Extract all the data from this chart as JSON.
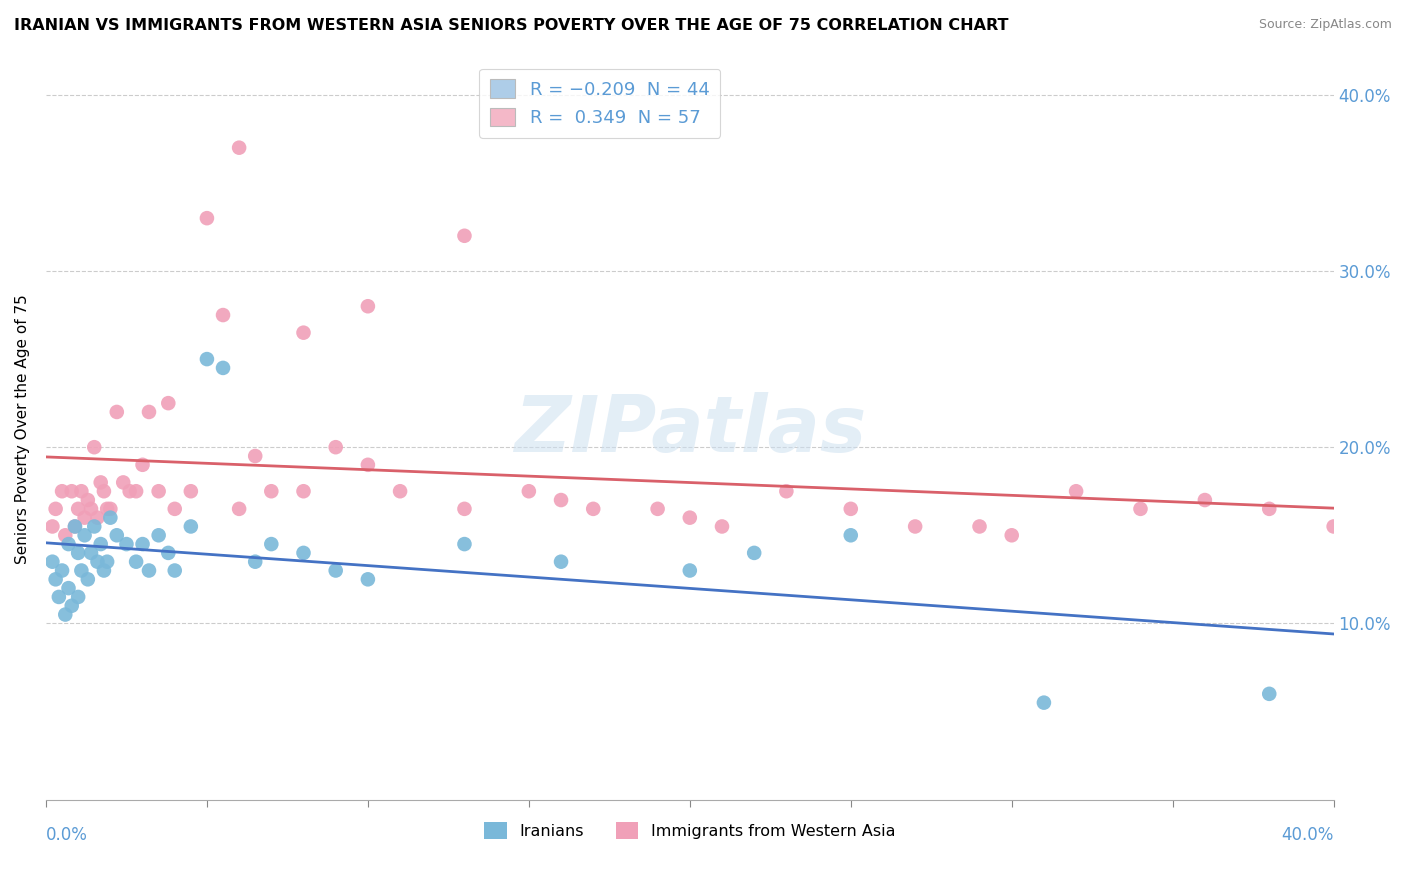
{
  "title": "IRANIAN VS IMMIGRANTS FROM WESTERN ASIA SENIORS POVERTY OVER THE AGE OF 75 CORRELATION CHART",
  "source": "Source: ZipAtlas.com",
  "ylabel": "Seniors Poverty Over the Age of 75",
  "ytick_positions": [
    0.1,
    0.2,
    0.3,
    0.4
  ],
  "xmin": 0.0,
  "xmax": 0.4,
  "ymin": 0.0,
  "ymax": 0.42,
  "watermark": "ZIPatlas",
  "iranians_color": "#7ab8d9",
  "western_asia_color": "#f0a0b8",
  "iranians_line_color": "#4472c4",
  "western_asia_line_color": "#d9606a",
  "iranians_scatter_x": [
    0.002,
    0.003,
    0.004,
    0.005,
    0.006,
    0.007,
    0.007,
    0.008,
    0.009,
    0.01,
    0.01,
    0.011,
    0.012,
    0.013,
    0.014,
    0.015,
    0.016,
    0.017,
    0.018,
    0.019,
    0.02,
    0.022,
    0.025,
    0.028,
    0.03,
    0.032,
    0.035,
    0.038,
    0.04,
    0.045,
    0.05,
    0.055,
    0.065,
    0.07,
    0.08,
    0.09,
    0.1,
    0.13,
    0.16,
    0.2,
    0.22,
    0.25,
    0.31,
    0.38
  ],
  "iranians_scatter_y": [
    0.135,
    0.125,
    0.115,
    0.13,
    0.105,
    0.12,
    0.145,
    0.11,
    0.155,
    0.14,
    0.115,
    0.13,
    0.15,
    0.125,
    0.14,
    0.155,
    0.135,
    0.145,
    0.13,
    0.135,
    0.16,
    0.15,
    0.145,
    0.135,
    0.145,
    0.13,
    0.15,
    0.14,
    0.13,
    0.155,
    0.25,
    0.245,
    0.135,
    0.145,
    0.14,
    0.13,
    0.125,
    0.145,
    0.135,
    0.13,
    0.14,
    0.15,
    0.055,
    0.06
  ],
  "western_asia_scatter_x": [
    0.002,
    0.003,
    0.005,
    0.006,
    0.008,
    0.009,
    0.01,
    0.011,
    0.012,
    0.013,
    0.014,
    0.015,
    0.016,
    0.017,
    0.018,
    0.019,
    0.02,
    0.022,
    0.024,
    0.026,
    0.028,
    0.03,
    0.032,
    0.035,
    0.038,
    0.04,
    0.045,
    0.05,
    0.055,
    0.06,
    0.065,
    0.07,
    0.08,
    0.09,
    0.1,
    0.11,
    0.13,
    0.15,
    0.17,
    0.19,
    0.21,
    0.23,
    0.25,
    0.27,
    0.29,
    0.32,
    0.34,
    0.36,
    0.38,
    0.4,
    0.06,
    0.08,
    0.1,
    0.13,
    0.16,
    0.2,
    0.3
  ],
  "western_asia_scatter_y": [
    0.155,
    0.165,
    0.175,
    0.15,
    0.175,
    0.155,
    0.165,
    0.175,
    0.16,
    0.17,
    0.165,
    0.2,
    0.16,
    0.18,
    0.175,
    0.165,
    0.165,
    0.22,
    0.18,
    0.175,
    0.175,
    0.19,
    0.22,
    0.175,
    0.225,
    0.165,
    0.175,
    0.33,
    0.275,
    0.165,
    0.195,
    0.175,
    0.265,
    0.2,
    0.19,
    0.175,
    0.165,
    0.175,
    0.165,
    0.165,
    0.155,
    0.175,
    0.165,
    0.155,
    0.155,
    0.175,
    0.165,
    0.17,
    0.165,
    0.155,
    0.37,
    0.175,
    0.28,
    0.32,
    0.17,
    0.16,
    0.15
  ]
}
